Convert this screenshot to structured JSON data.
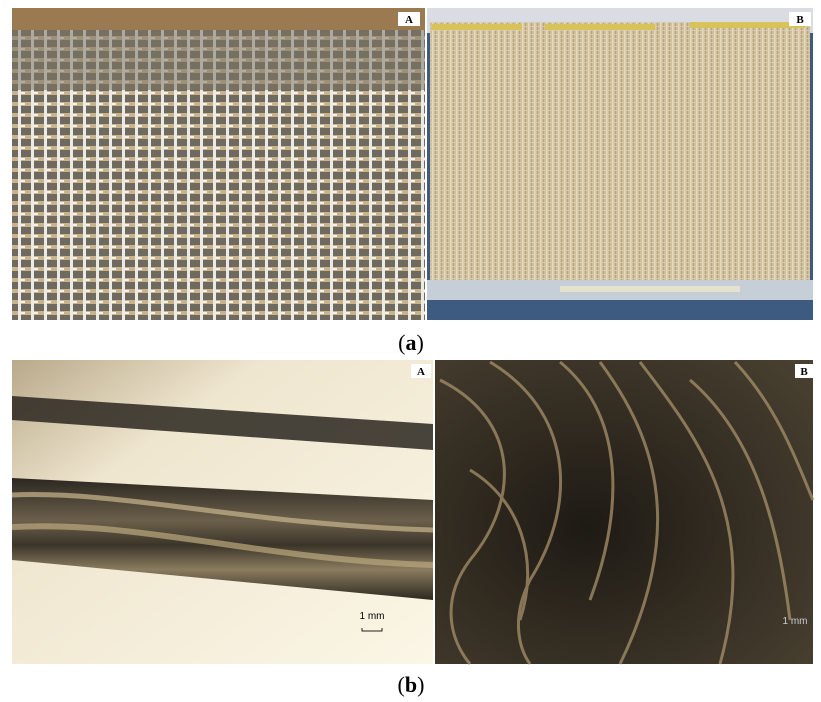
{
  "figure": {
    "panels": [
      {
        "caption": {
          "open": "(",
          "letter": "a",
          "close": ")"
        },
        "images": [
          {
            "label": "A"
          },
          {
            "label": "B"
          }
        ]
      },
      {
        "caption": {
          "open": "(",
          "letter": "b",
          "close": ")"
        },
        "images": [
          {
            "label": "A",
            "scale_bar": "1 mm"
          },
          {
            "label": "B",
            "scale_bar": "1 mm"
          }
        ]
      }
    ]
  }
}
